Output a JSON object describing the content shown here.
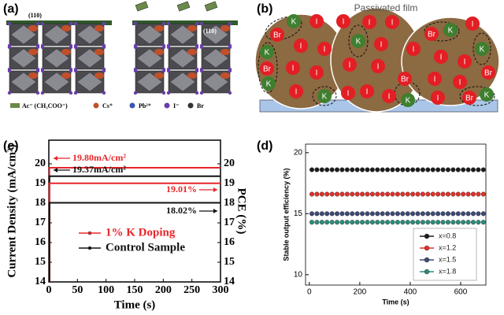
{
  "panel_a": {
    "label": "(a)",
    "facet_labels": [
      "(110)",
      "(110)"
    ],
    "legend": [
      "Ac⁻ (CH₃COO⁻)",
      "Cs⁺",
      "Pb²⁺",
      "I⁻",
      "Br"
    ]
  },
  "panel_b": {
    "label": "(b)",
    "title": "Passivated film",
    "ions": [
      "K",
      "Br",
      "I",
      "I",
      "K",
      "I",
      "I",
      "Br",
      "I",
      "I",
      "K",
      "I",
      "K",
      "I",
      "I",
      "I",
      "K",
      "I",
      "I",
      "I",
      "Br",
      "I",
      "K",
      "I",
      "I",
      "Br",
      "K",
      "I",
      "K",
      "I",
      "I",
      "Br",
      "I",
      "I",
      "I",
      "Br",
      "K"
    ]
  },
  "chart_data": [
    {
      "type": "line",
      "panel_label": "(c)",
      "xlabel": "Time (s)",
      "ylabel": "Current Density (mA/cm²)",
      "y2label": "PCE (%)",
      "x": [
        1,
        1,
        300
      ],
      "xlim": [
        0,
        300
      ],
      "xticks": [
        0,
        50,
        100,
        150,
        200,
        250,
        300
      ],
      "ylim": [
        14,
        21.2
      ],
      "yticks": [
        14,
        15,
        16,
        17,
        18,
        19,
        20
      ],
      "y2lim": [
        14,
        21.2
      ],
      "y2ticks": [
        14,
        15,
        16,
        17,
        18,
        19,
        20
      ],
      "legend": "lower left",
      "series": [
        {
          "name": "1% K Doping",
          "color": "#e8262a",
          "values": [
            14,
            19.8,
            19.8
          ],
          "value_labels": [
            null,
            "19.80mA/cm²",
            null
          ]
        },
        {
          "name": "Control Sample",
          "color": "#111111",
          "values": [
            14,
            19.37,
            19.37
          ],
          "value_labels": [
            null,
            "19.37mA/cm²",
            null
          ]
        },
        {
          "color": "#e8262a",
          "axis": "y2",
          "values": [
            14,
            19.01,
            19.01
          ],
          "value_labels": [
            null,
            "19.01%",
            null
          ]
        },
        {
          "color": "#111111",
          "axis": "y2",
          "values": [
            14,
            18.02,
            18.02
          ],
          "value_labels": [
            null,
            "18.02%",
            null
          ]
        }
      ]
    },
    {
      "type": "scatter",
      "panel_label": "(d)",
      "xlabel": "Time (s)",
      "ylabel": "Stable output efficiency (%)",
      "x": [
        10,
        30,
        50,
        70,
        90,
        110,
        130,
        150,
        170,
        190,
        210,
        230,
        250,
        270,
        290,
        310,
        330,
        350,
        370,
        390,
        410,
        430,
        450,
        470,
        490,
        510,
        530,
        550,
        570,
        590,
        610,
        630,
        650,
        670,
        690
      ],
      "xlim": [
        -15,
        700
      ],
      "xticks": [
        0,
        200,
        400,
        600
      ],
      "ylim": [
        9.15,
        20.7
      ],
      "yticks": [
        10,
        15,
        20
      ],
      "legend": "lower right",
      "series": [
        {
          "name": "x=0.8",
          "color": "#1c1c1c",
          "values": [
            18.6,
            18.6,
            18.6,
            18.6,
            18.6,
            18.6,
            18.6,
            18.6,
            18.6,
            18.6,
            18.6,
            18.6,
            18.6,
            18.6,
            18.6,
            18.6,
            18.6,
            18.6,
            18.6,
            18.6,
            18.6,
            18.6,
            18.6,
            18.6,
            18.6,
            18.6,
            18.6,
            18.6,
            18.6,
            18.6,
            18.6,
            18.6,
            18.6,
            18.6,
            18.6
          ]
        },
        {
          "name": "x=1.2",
          "color": "#e0302a",
          "values": [
            16.6,
            16.6,
            16.6,
            16.6,
            16.6,
            16.6,
            16.6,
            16.6,
            16.6,
            16.6,
            16.6,
            16.6,
            16.6,
            16.6,
            16.6,
            16.6,
            16.6,
            16.6,
            16.6,
            16.6,
            16.6,
            16.6,
            16.6,
            16.6,
            16.6,
            16.6,
            16.6,
            16.6,
            16.6,
            16.6,
            16.6,
            16.6,
            16.6,
            16.6,
            16.6
          ]
        },
        {
          "name": "x=1.5",
          "color": "#3d4a78",
          "values": [
            15.0,
            15.0,
            15.0,
            15.0,
            15.0,
            15.0,
            15.0,
            15.0,
            15.0,
            15.0,
            15.0,
            15.0,
            15.0,
            15.0,
            15.0,
            15.0,
            15.0,
            15.0,
            15.0,
            15.0,
            15.0,
            15.0,
            15.0,
            15.0,
            15.0,
            15.0,
            15.0,
            15.0,
            15.0,
            15.0,
            15.0,
            15.0,
            15.0,
            15.0,
            15.0
          ]
        },
        {
          "name": "x=1.8",
          "color": "#2e8b7a",
          "values": [
            14.3,
            14.3,
            14.3,
            14.3,
            14.3,
            14.3,
            14.3,
            14.3,
            14.3,
            14.3,
            14.3,
            14.3,
            14.3,
            14.3,
            14.3,
            14.3,
            14.3,
            14.3,
            14.3,
            14.3,
            14.3,
            14.3,
            14.3,
            14.3,
            14.3,
            14.3,
            14.3,
            14.3,
            14.3,
            14.3,
            14.3,
            14.3,
            14.3,
            14.3,
            14.3
          ]
        }
      ]
    }
  ]
}
